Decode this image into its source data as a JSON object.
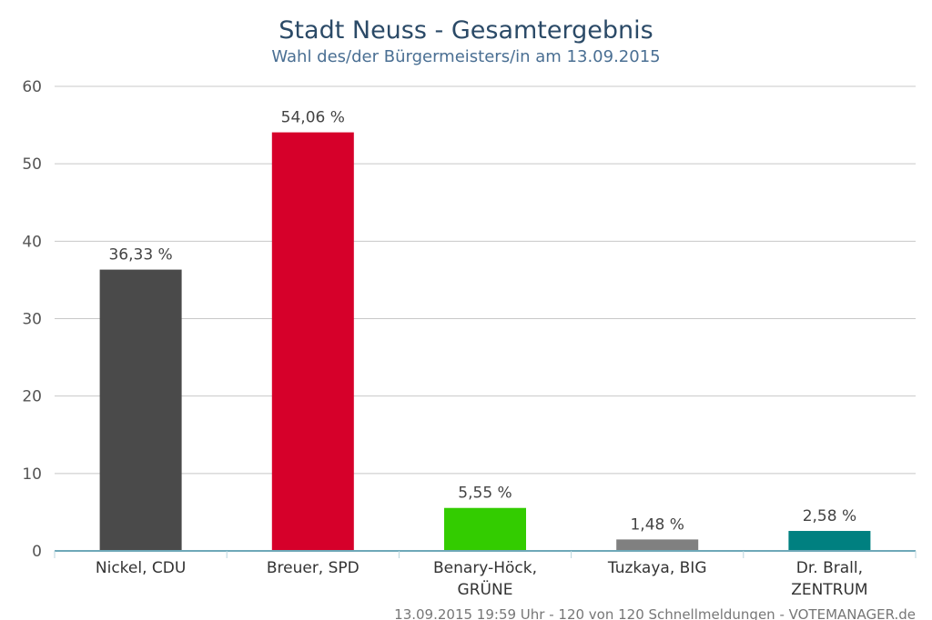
{
  "chart_data": {
    "type": "bar",
    "title": "Stadt Neuss - Gesamtergebnis",
    "subtitle": "Wahl des/der Bürgermeisters/in am 13.09.2015",
    "categories": [
      [
        "Nickel, CDU"
      ],
      [
        "Breuer, SPD"
      ],
      [
        "Benary-Höck,",
        "GRÜNE"
      ],
      [
        "Tuzkaya, BIG"
      ],
      [
        "Dr. Brall,",
        "ZENTRUM"
      ]
    ],
    "values": [
      36.33,
      54.06,
      5.55,
      1.48,
      2.58
    ],
    "data_labels": [
      "36,33 %",
      "54,06 %",
      "5,55 %",
      "1,48 %",
      "2,58 %"
    ],
    "colors": [
      "#4a4a4a",
      "#d6002a",
      "#33cc00",
      "#808080",
      "#008080"
    ],
    "ylim": [
      0,
      60
    ],
    "yticks": [
      0,
      10,
      20,
      30,
      40,
      50,
      60
    ],
    "grid": true,
    "legend": "none",
    "credit": "13.09.2015 19:59 Uhr - 120 von 120 Schnellmeldungen - VOTEMANAGER.de"
  }
}
